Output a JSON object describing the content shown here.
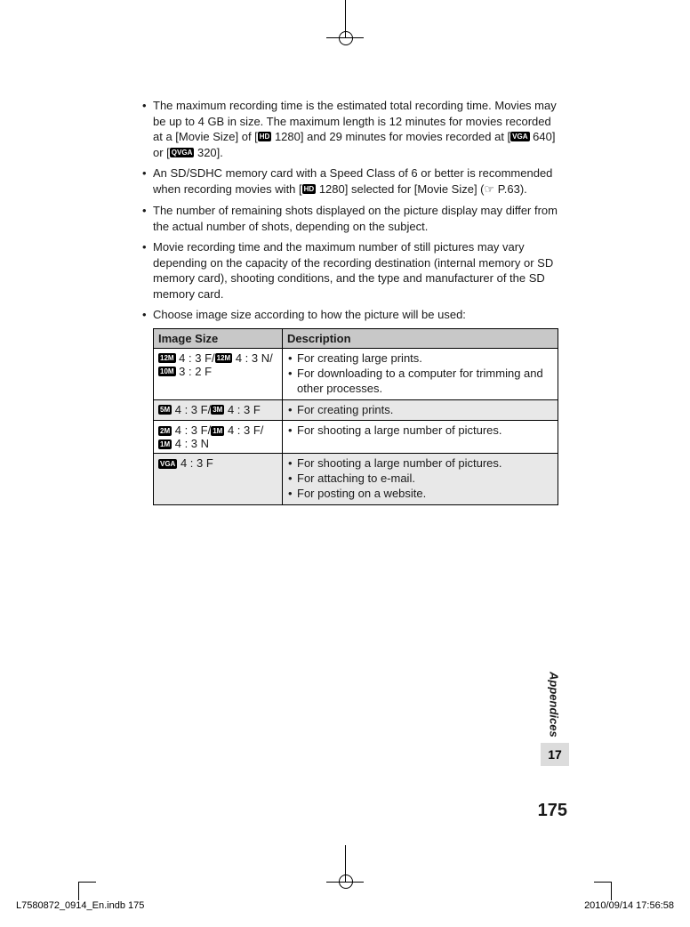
{
  "bullets": [
    {
      "parts": [
        {
          "t": "text",
          "v": "The maximum recording time is the estimated total recording time. Movies may be up to 4 GB in size. The maximum length is 12 minutes for movies recorded at a [Movie Size] of ["
        },
        {
          "t": "icon",
          "v": "HD"
        },
        {
          "t": "text",
          "v": " 1280] and 29 minutes for movies recorded at ["
        },
        {
          "t": "icon",
          "v": "VGA"
        },
        {
          "t": "text",
          "v": " 640] or ["
        },
        {
          "t": "icon",
          "v": "QVGA"
        },
        {
          "t": "text",
          "v": " 320]."
        }
      ]
    },
    {
      "parts": [
        {
          "t": "text",
          "v": "An SD/SDHC memory card with a Speed Class of 6 or better is recommended when recording movies with ["
        },
        {
          "t": "icon",
          "v": "HD"
        },
        {
          "t": "text",
          "v": " 1280] selected for [Movie Size] ("
        },
        {
          "t": "hand",
          "v": "☞"
        },
        {
          "t": "text",
          "v": " P.63)."
        }
      ]
    },
    {
      "parts": [
        {
          "t": "text",
          "v": "The number of remaining shots displayed on the picture display may differ from the actual number of shots, depending on the subject."
        }
      ]
    },
    {
      "parts": [
        {
          "t": "text",
          "v": "Movie recording time and the maximum number of still pictures may vary depending on the capacity of the recording destination (internal memory or SD memory card), shooting conditions, and the type and manufacturer of the SD memory card."
        }
      ]
    },
    {
      "parts": [
        {
          "t": "text",
          "v": "Choose image size according to how the picture will be used:"
        }
      ]
    }
  ],
  "table": {
    "headers": [
      "Image Size",
      "Description"
    ],
    "rows": [
      {
        "shade": false,
        "size_parts": [
          {
            "t": "icon",
            "v": "12M"
          },
          {
            "t": "text",
            "v": " 4 : 3 F/"
          },
          {
            "t": "icon",
            "v": "12M"
          },
          {
            "t": "text",
            "v": " 4 : 3 N/"
          },
          {
            "t": "br"
          },
          {
            "t": "icon",
            "v": "10M"
          },
          {
            "t": "text",
            "v": " 3 : 2 F"
          }
        ],
        "desc": [
          "For creating large prints.",
          "For downloading to a computer for trimming and other processes."
        ]
      },
      {
        "shade": true,
        "size_parts": [
          {
            "t": "icon",
            "v": "5M"
          },
          {
            "t": "text",
            "v": " 4 : 3 F/"
          },
          {
            "t": "icon",
            "v": "3M"
          },
          {
            "t": "text",
            "v": " 4 : 3 F"
          }
        ],
        "desc": [
          "For creating prints."
        ]
      },
      {
        "shade": false,
        "size_parts": [
          {
            "t": "icon",
            "v": "2M"
          },
          {
            "t": "text",
            "v": " 4 : 3 F/"
          },
          {
            "t": "icon",
            "v": "1M"
          },
          {
            "t": "text",
            "v": " 4 : 3 F/"
          },
          {
            "t": "br"
          },
          {
            "t": "icon",
            "v": "1M"
          },
          {
            "t": "text",
            "v": " 4 : 3 N"
          }
        ],
        "desc": [
          "For shooting a large number of pictures."
        ]
      },
      {
        "shade": true,
        "size_parts": [
          {
            "t": "icon",
            "v": "VGA"
          },
          {
            "t": "text",
            "v": " 4 : 3 F"
          }
        ],
        "desc": [
          "For shooting a large number of pictures.",
          "For attaching to e-mail.",
          "For posting on a website."
        ]
      }
    ]
  },
  "side_label": "Appendices",
  "side_tab": "17",
  "page_num": "175",
  "footer_left": "L7580872_0914_En.indb   175",
  "footer_right": "2010/09/14   17:56:58"
}
